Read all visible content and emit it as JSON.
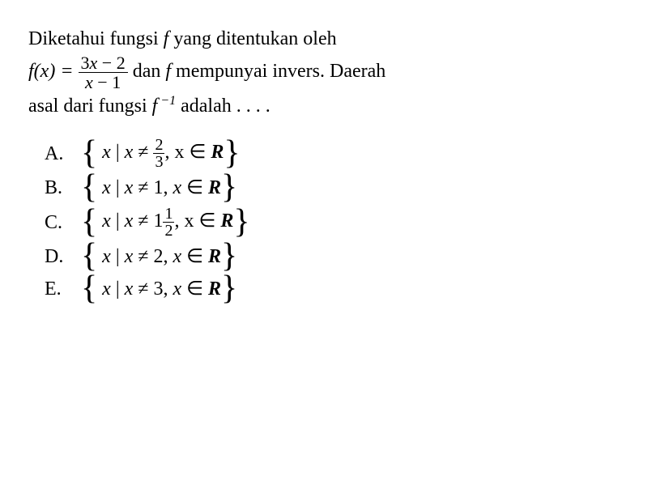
{
  "question": {
    "line1_pre": "Diketahui fungsi ",
    "f": "f",
    "line1_post": " yang ditentukan oleh",
    "fx": "f(x) = ",
    "frac_num": "3x − 2",
    "frac_den": "x − 1",
    "line2_mid": " dan ",
    "f2": "f",
    "line2_post": " mempunyai invers. Daerah",
    "line3_pre": "asal dari fungsi ",
    "finv": "f",
    "finv_sup": " −1",
    "line3_post": " adalah . . . ."
  },
  "options": {
    "A": {
      "letter": "A.",
      "content": "x | x ≠ ",
      "frac_num": "2",
      "frac_den": "3",
      "tail": ", x ∈ ",
      "R": "R"
    },
    "B": {
      "letter": "B.",
      "content": "x | x ≠ 1, x ∈ ",
      "R": "R"
    },
    "C": {
      "letter": "C.",
      "content": "x | x ≠ 1",
      "frac_num": "1",
      "frac_den": "2",
      "tail": ", x ∈ ",
      "R": "R"
    },
    "D": {
      "letter": "D.",
      "content": "x | x ≠ 2, x ∈ ",
      "R": "R"
    },
    "E": {
      "letter": "E.",
      "content": "x | x ≠ 3, x ∈ ",
      "R": "R"
    }
  },
  "style": {
    "font_family": "Times New Roman",
    "font_size_pt": 18,
    "text_color": "#000000",
    "background_color": "#ffffff"
  }
}
